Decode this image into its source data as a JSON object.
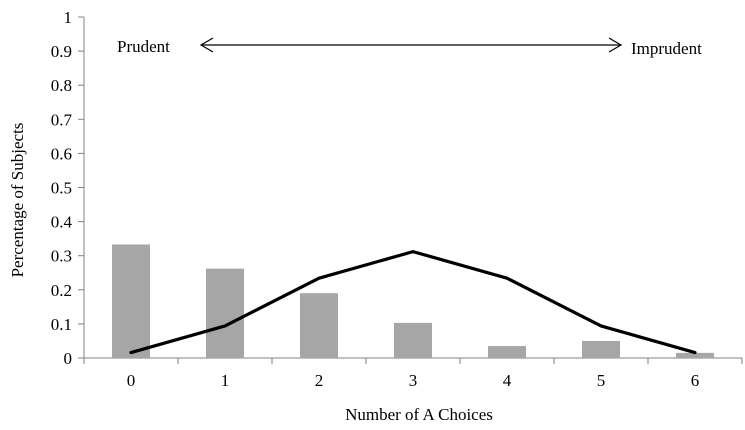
{
  "chart_data": {
    "type": "bar",
    "title": "",
    "xlabel": "Number of A Choices",
    "ylabel": "Percentage of Subjects",
    "categories": [
      "0",
      "1",
      "2",
      "3",
      "4",
      "5",
      "6"
    ],
    "ylim": [
      0,
      1
    ],
    "yticks": [
      "0",
      "0.1",
      "0.2",
      "0.3",
      "0.4",
      "0.5",
      "0.6",
      "0.7",
      "0.8",
      "0.9",
      "1"
    ],
    "grid": false,
    "legend": "none",
    "series": [
      {
        "type": "bar",
        "color": "#a6a6a6",
        "values": [
          0.333,
          0.262,
          0.19,
          0.103,
          0.035,
          0.05,
          0.015
        ]
      },
      {
        "type": "line",
        "color": "#000000",
        "values": [
          0.016,
          0.094,
          0.234,
          0.312,
          0.234,
          0.094,
          0.016
        ]
      }
    ],
    "annotations": {
      "left_label": "Prudent",
      "right_label": "Imprudent",
      "arrow": "double-headed, spanning from 1 to 5"
    }
  }
}
